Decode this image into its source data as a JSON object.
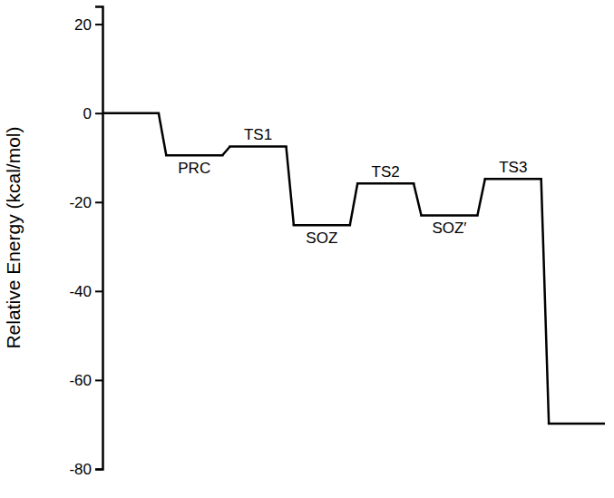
{
  "chart_data": {
    "type": "step",
    "y_label": "Relative Energy (kcal/mol)",
    "categories": [
      null,
      "PRC",
      "TS1",
      "SOZ",
      "TS2",
      "SOZ′",
      "TS3",
      null
    ],
    "values": [
      0,
      -9.5,
      -7.5,
      -25.2,
      -15.8,
      -23,
      -14.8,
      -69.8
    ],
    "color": "#000000",
    "ylim": [
      -80,
      24
    ],
    "yticks": [
      -80,
      -60,
      -40,
      -20,
      0,
      20
    ],
    "tick_labels": "y"
  }
}
